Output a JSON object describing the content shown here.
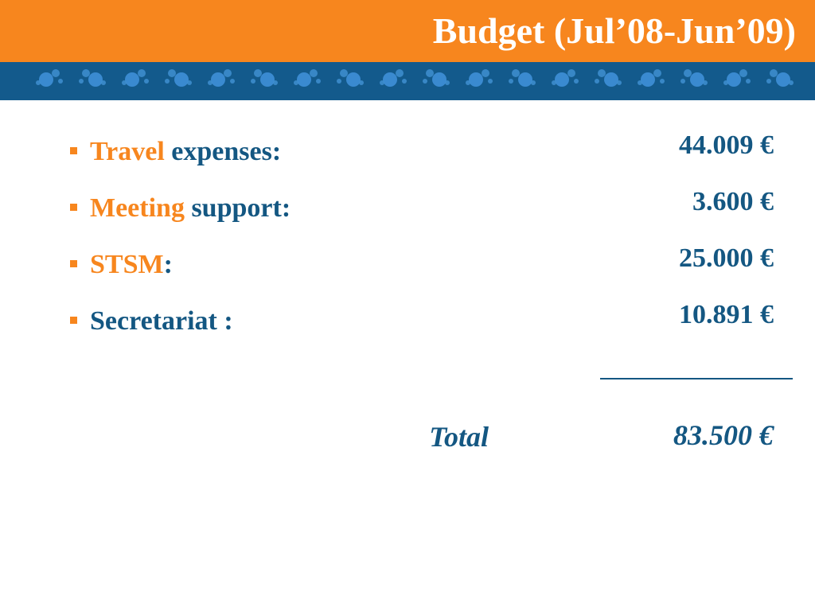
{
  "header": {
    "title": "Budget (Jul’08-Jun’09)"
  },
  "items": [
    {
      "parts": [
        {
          "text": "Travel",
          "accent": true
        },
        {
          "text": " expenses:",
          "accent": false
        }
      ],
      "amount": "44.009 €",
      "amount_accent": false
    },
    {
      "parts": [
        {
          "text": "Meeting",
          "accent": true
        },
        {
          "text": " support:",
          "accent": false
        }
      ],
      "amount": "3.600 €",
      "amount_accent": true
    },
    {
      "parts": [
        {
          "text": "STSM",
          "accent": true
        },
        {
          "text": ":",
          "accent": false
        }
      ],
      "amount": "25.000 €",
      "amount_accent": false
    },
    {
      "parts": [
        {
          "text": "Secretariat :",
          "accent": false
        }
      ],
      "amount": "10.891 €",
      "amount_accent": true
    }
  ],
  "total": {
    "label": "Total",
    "amount": "83.500 €"
  }
}
